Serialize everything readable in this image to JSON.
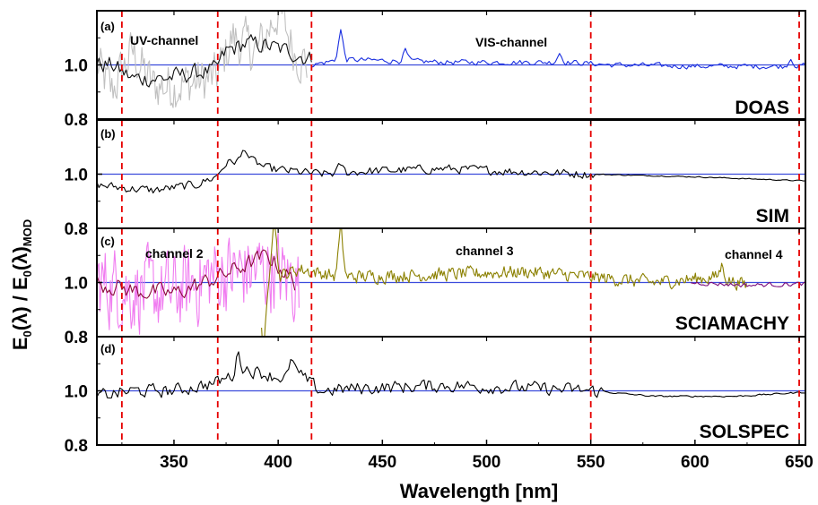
{
  "chart_data": {
    "type": "line",
    "xlabel": "Wavelength [nm]",
    "ylabel_parts": [
      "E",
      "0",
      "(λ) / E",
      "0",
      "(λ)",
      "MOD"
    ],
    "xlim": [
      313,
      653
    ],
    "xticks": [
      350,
      400,
      450,
      500,
      550,
      600,
      650
    ],
    "xtick_labels": [
      "350",
      "400",
      "450",
      "500",
      "550",
      "600",
      "650"
    ],
    "ytick_labels": [
      "0.8",
      "1.0"
    ],
    "reference_line": 1.0,
    "reference_color": "#3b4bdc",
    "vlines": [
      325,
      371,
      416,
      550,
      650
    ],
    "vline_color": "#e60000",
    "panels": [
      {
        "letter": "(a)",
        "name": "DOAS",
        "ylim": [
          0.8,
          1.2
        ],
        "annotations": [
          "UV-channel",
          "VIS-channel"
        ],
        "series": [
          {
            "color": "#c0c0c0",
            "anchors": [
              [
                313,
                1.0
              ],
              [
                320,
                0.9
              ],
              [
                330,
                1.05
              ],
              [
                340,
                0.92
              ],
              [
                355,
                0.93
              ],
              [
                370,
                0.95
              ],
              [
                378,
                1.1
              ],
              [
                390,
                1.05
              ],
              [
                400,
                1.2
              ],
              [
                408,
                1.05
              ],
              [
                414,
                1.0
              ]
            ],
            "noise": 0.11,
            "start": 313,
            "end": 414,
            "step": 0.6
          },
          {
            "color": "#111111",
            "anchors": [
              [
                313,
                1.0
              ],
              [
                320,
                1.0
              ],
              [
                330,
                0.95
              ],
              [
                345,
                0.95
              ],
              [
                360,
                0.97
              ],
              [
                370,
                0.98
              ],
              [
                375,
                1.05
              ],
              [
                385,
                1.08
              ],
              [
                395,
                1.07
              ],
              [
                405,
                1.05
              ],
              [
                416,
                1.02
              ]
            ],
            "noise": 0.04,
            "start": 313,
            "end": 416,
            "step": 1.0
          },
          {
            "color": "#1a2fe0",
            "anchors": [
              [
                416,
                1.0
              ],
              [
                430,
                1.02
              ],
              [
                480,
                1.01
              ],
              [
                540,
                1.01
              ],
              [
                560,
                1.0
              ],
              [
                600,
                0.995
              ],
              [
                650,
                0.995
              ],
              [
                653,
                1.0
              ]
            ],
            "noise": 0.012,
            "start": 416,
            "end": 653,
            "step": 1.0,
            "spikes": [
              [
                430,
                0.11
              ],
              [
                461,
                0.04
              ],
              [
                535,
                0.035
              ],
              [
                646,
                0.03
              ]
            ]
          }
        ]
      },
      {
        "letter": "(b)",
        "name": "SIM",
        "ylim": [
          0.8,
          1.2
        ],
        "annotations": [],
        "series": [
          {
            "color": "#000000",
            "anchors": [
              [
                313,
                0.96
              ],
              [
                325,
                0.95
              ],
              [
                340,
                0.94
              ],
              [
                360,
                0.96
              ],
              [
                370,
                0.99
              ],
              [
                375,
                1.04
              ],
              [
                385,
                1.06
              ],
              [
                395,
                1.02
              ],
              [
                420,
                1.0
              ],
              [
                440,
                1.01
              ],
              [
                480,
                1.02
              ],
              [
                550,
                1.0
              ],
              [
                600,
                0.99
              ],
              [
                653,
                0.975
              ]
            ],
            "noise": 0.02,
            "start": 313,
            "end": 653,
            "step": 1.0,
            "fade_after": 552,
            "spikes": [
              [
                384,
                0.04
              ],
              [
                430,
                0.03
              ]
            ]
          }
        ]
      },
      {
        "letter": "(c)",
        "name": "SCIAMACHY",
        "ylim": [
          0.8,
          1.2
        ],
        "annotations": [
          "channel 2",
          "channel 3",
          "channel 4"
        ],
        "series": [
          {
            "color": "#f07cf0",
            "anchors": [
              [
                313,
                1.0
              ],
              [
                330,
                0.97
              ],
              [
                350,
                0.96
              ],
              [
                370,
                1.03
              ],
              [
                395,
                1.05
              ],
              [
                410,
                1.0
              ]
            ],
            "noise": 0.18,
            "start": 313,
            "end": 410,
            "step": 0.5
          },
          {
            "color": "#8a0a3a",
            "anchors": [
              [
                313,
                1.0
              ],
              [
                330,
                0.97
              ],
              [
                350,
                0.96
              ],
              [
                365,
                1.0
              ],
              [
                380,
                1.05
              ],
              [
                395,
                1.1
              ],
              [
                408,
                1.0
              ]
            ],
            "noise": 0.04,
            "start": 313,
            "end": 408,
            "step": 1.0
          },
          {
            "color": "#8b8000",
            "anchors": [
              [
                392,
                1.0
              ],
              [
                410,
                1.05
              ],
              [
                430,
                1.02
              ],
              [
                480,
                1.03
              ],
              [
                520,
                1.04
              ],
              [
                550,
                1.02
              ],
              [
                580,
                1.0
              ],
              [
                610,
                1.02
              ],
              [
                625,
                0.99
              ]
            ],
            "noise": 0.03,
            "start": 392,
            "end": 625,
            "step": 0.6,
            "spikes": [
              [
                393,
                -0.28
              ],
              [
                398,
                0.25
              ],
              [
                430,
                0.18
              ],
              [
                613,
                0.05
              ]
            ]
          },
          {
            "color": "#7a0a7a",
            "anchors": [
              [
                598,
                1.0
              ],
              [
                625,
                0.99
              ],
              [
                653,
                0.995
              ]
            ],
            "noise": 0.01,
            "start": 598,
            "end": 653,
            "step": 1.0
          }
        ]
      },
      {
        "letter": "(d)",
        "name": "SOLSPEC",
        "ylim": [
          0.8,
          1.2
        ],
        "annotations": [],
        "series": [
          {
            "color": "#000000",
            "anchors": [
              [
                313,
                0.98
              ],
              [
                330,
                1.0
              ],
              [
                350,
                1.0
              ],
              [
                370,
                1.03
              ],
              [
                385,
                1.08
              ],
              [
                400,
                1.05
              ],
              [
                410,
                1.06
              ],
              [
                420,
                1.0
              ],
              [
                440,
                1.01
              ],
              [
                480,
                1.02
              ],
              [
                520,
                1.01
              ],
              [
                550,
                1.0
              ],
              [
                580,
                0.98
              ],
              [
                620,
                0.98
              ],
              [
                653,
                0.995
              ]
            ],
            "noise": 0.03,
            "start": 313,
            "end": 653,
            "step": 1.0,
            "fade_after": 555,
            "spikes": [
              [
                381,
                0.08
              ],
              [
                407,
                0.06
              ]
            ]
          }
        ]
      }
    ]
  }
}
